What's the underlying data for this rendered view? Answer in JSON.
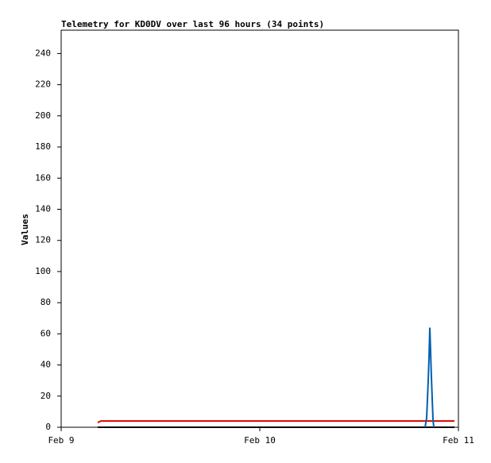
{
  "chart_data": {
    "type": "line",
    "title": "Telemetry for KD0DV over last 96 hours (34 points)",
    "ylabel": "Values",
    "xlim": [
      0,
      2
    ],
    "xticks": [
      {
        "value": 0,
        "label": "Feb 9"
      },
      {
        "value": 1,
        "label": "Feb 10"
      },
      {
        "value": 2,
        "label": "Feb 11"
      }
    ],
    "ylim": [
      0,
      255
    ],
    "yticks": [
      0,
      20,
      40,
      60,
      80,
      100,
      120,
      140,
      160,
      180,
      200,
      220,
      240
    ],
    "series": [
      {
        "color": "#000000",
        "x": [
          0.184,
          0.5,
          1.0,
          1.5,
          1.98
        ],
        "values": [
          0,
          0,
          0,
          0,
          0
        ]
      },
      {
        "color": "#dd0000",
        "x": [
          0.184,
          0.2,
          0.6,
          1.0,
          1.4,
          1.8,
          1.98
        ],
        "values": [
          3,
          4,
          4,
          4,
          4,
          4,
          4
        ]
      },
      {
        "color": "#0060b0",
        "x": [
          1.832,
          1.84,
          1.848,
          1.852,
          1.856,
          1.864,
          1.872,
          1.876
        ],
        "values": [
          0,
          6,
          30,
          45,
          64,
          32,
          5,
          0
        ]
      }
    ]
  }
}
